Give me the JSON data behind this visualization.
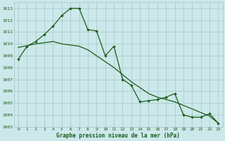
{
  "background_color": "#cce8ea",
  "grid_color": "#aacccc",
  "line_color": "#1a5c1a",
  "ylim": [
    1003,
    1013.5
  ],
  "xlim": [
    -0.5,
    23.5
  ],
  "yticks": [
    1003,
    1004,
    1005,
    1006,
    1007,
    1008,
    1009,
    1010,
    1011,
    1012,
    1013
  ],
  "xticks": [
    0,
    1,
    2,
    3,
    4,
    5,
    6,
    7,
    8,
    9,
    10,
    11,
    12,
    13,
    14,
    15,
    16,
    17,
    18,
    19,
    20,
    21,
    22,
    23
  ],
  "xlabel": "Graphe pression niveau de la mer (hPa)",
  "series1_x": [
    0,
    1,
    2,
    3,
    4,
    5,
    6,
    7,
    8,
    9,
    10,
    11,
    12,
    13,
    14,
    15,
    16,
    17,
    18,
    19,
    20,
    21,
    22,
    23
  ],
  "series1_y": [
    1008.7,
    1009.8,
    1010.2,
    1010.8,
    1011.5,
    1012.4,
    1013.0,
    1013.0,
    1011.2,
    1011.1,
    1009.0,
    1009.8,
    1007.0,
    1006.5,
    1005.1,
    1005.2,
    1005.3,
    1005.5,
    1005.8,
    1004.0,
    1003.8,
    1003.8,
    1004.1,
    1003.3
  ],
  "series2_x": [
    0,
    1,
    2,
    3,
    4,
    5,
    6,
    7,
    8,
    9,
    10,
    11,
    12,
    13,
    14,
    15,
    16,
    17,
    18,
    19,
    20,
    21,
    22,
    23
  ],
  "series2_y": [
    1009.7,
    1009.85,
    1010.0,
    1010.1,
    1010.2,
    1010.0,
    1009.9,
    1009.8,
    1009.5,
    1009.0,
    1008.5,
    1008.0,
    1007.4,
    1006.8,
    1006.3,
    1005.8,
    1005.5,
    1005.3,
    1005.1,
    1004.8,
    1004.5,
    1004.2,
    1003.9,
    1003.3
  ]
}
